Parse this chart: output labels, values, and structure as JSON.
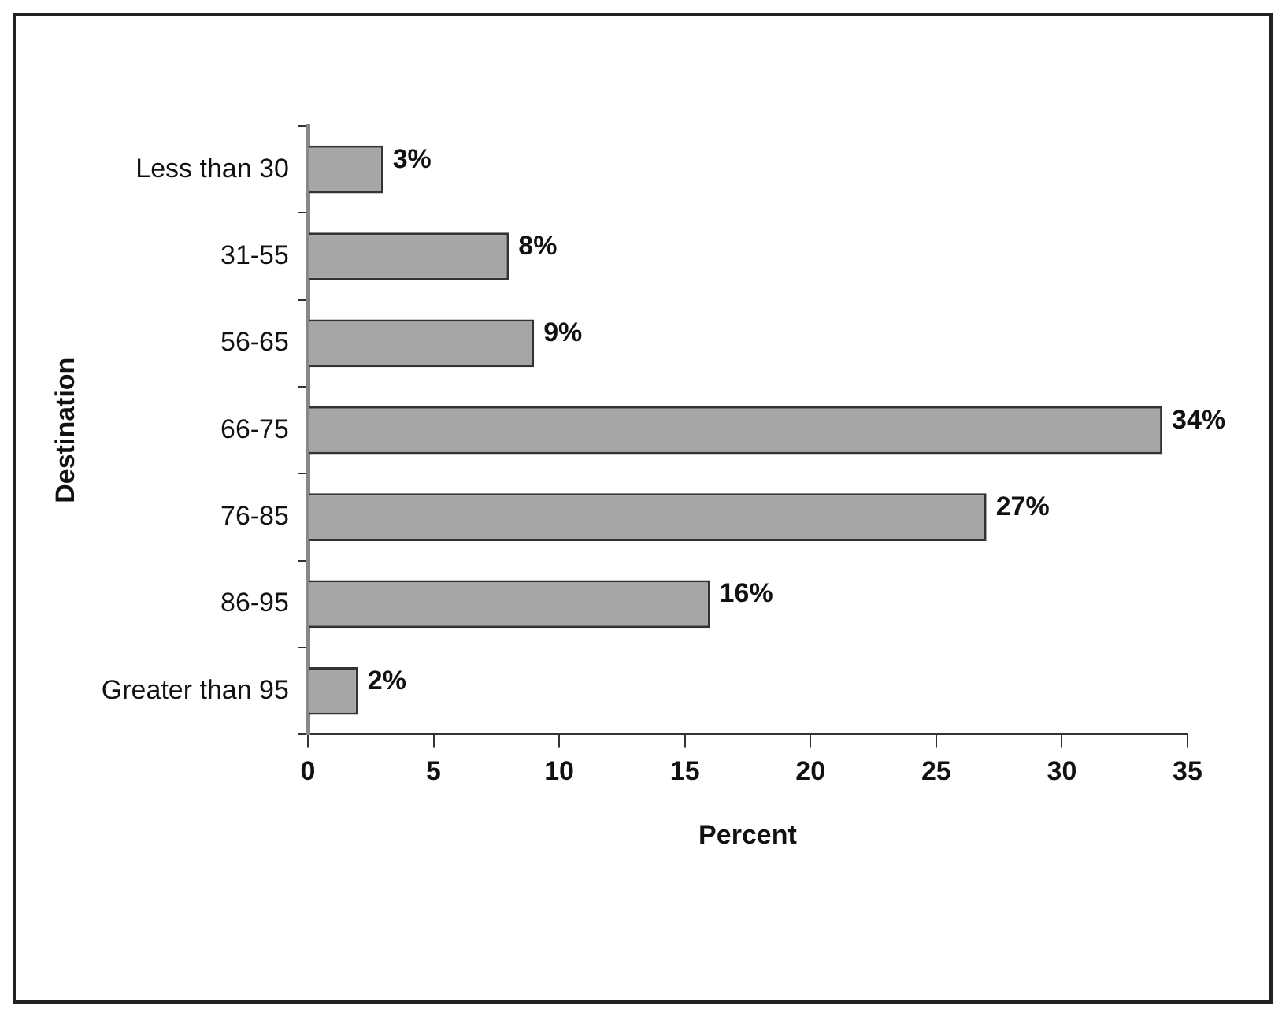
{
  "chart_data": {
    "type": "bar",
    "orientation": "horizontal",
    "xlabel": "Percent",
    "ylabel": "Destination",
    "categories": [
      "Less than 30",
      "31-55",
      "56-65",
      "66-75",
      "76-85",
      "86-95",
      "Greater than 95"
    ],
    "values": [
      3,
      8,
      9,
      34,
      27,
      16,
      2
    ],
    "value_labels": [
      "3%",
      "8%",
      "9%",
      "34%",
      "27%",
      "16%",
      "2%"
    ],
    "color": "#a6a6a6",
    "xlim": [
      0,
      35
    ],
    "xticks": [
      0,
      5,
      10,
      15,
      20,
      25,
      30,
      35
    ],
    "grid": false,
    "legend": false
  }
}
